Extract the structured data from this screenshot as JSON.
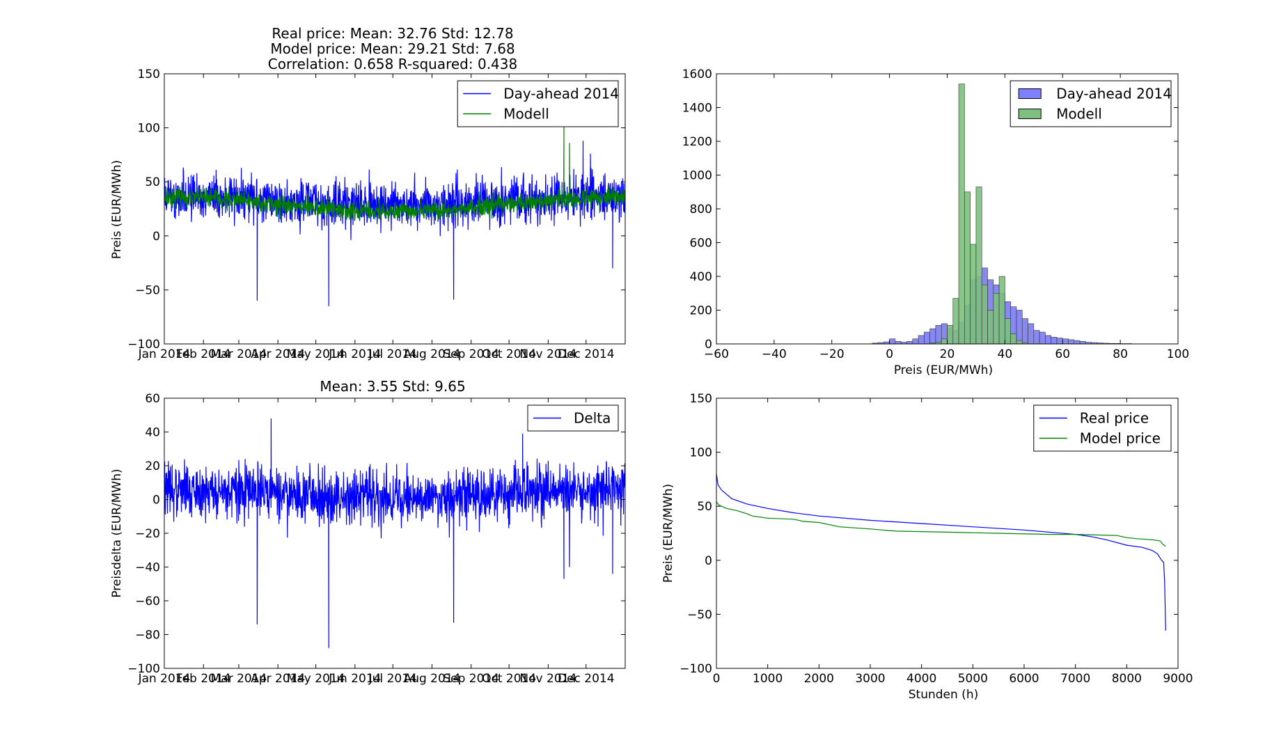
{
  "colors": {
    "blue": "#0000ff",
    "green": "#008000",
    "hist_blue": "#7b7bf0",
    "hist_green": "#7dbf7d"
  },
  "chart_data": [
    {
      "type": "line",
      "title_lines": [
        "Real price: Mean: 32.76 Std: 12.78",
        "Model price: Mean: 29.21 Std: 7.68",
        "Correlation: 0.658 R-squared: 0.438"
      ],
      "xlabel": "",
      "ylabel": "Preis (EUR/MWh)",
      "ylim": [
        -100,
        150
      ],
      "yticks": [
        -100,
        -50,
        0,
        50,
        100,
        150
      ],
      "xlim": [
        0,
        8760
      ],
      "xticks": [
        {
          "x": 0,
          "label": "Jan 2014"
        },
        {
          "x": 744,
          "label": "Feb 2014"
        },
        {
          "x": 1416,
          "label": "Mar 2014"
        },
        {
          "x": 2160,
          "label": "Apr 2014"
        },
        {
          "x": 2880,
          "label": "May 2014"
        },
        {
          "x": 3624,
          "label": "Jun 2014"
        },
        {
          "x": 4344,
          "label": "Jul 2014"
        },
        {
          "x": 5088,
          "label": "Aug 2014"
        },
        {
          "x": 5832,
          "label": "Sep 2014"
        },
        {
          "x": 6552,
          "label": "Oct 2014"
        },
        {
          "x": 7296,
          "label": "Nov 2014"
        },
        {
          "x": 8016,
          "label": "Dec 2014"
        }
      ],
      "legend": [
        "Day-ahead 2014",
        "Modell"
      ],
      "legend_loc": "upper right",
      "series": [
        {
          "name": "Day-ahead 2014",
          "color": "#0000ff",
          "mean": 32.76,
          "std": 12.78,
          "spikes": [
            {
              "x": 1765,
              "y": -60
            },
            {
              "x": 3125,
              "y": -65
            },
            {
              "x": 5500,
              "y": -59
            },
            {
              "x": 8520,
              "y": -30
            },
            {
              "x": 7960,
              "y": 88
            }
          ]
        },
        {
          "name": "Modell",
          "color": "#008000",
          "mean": 29.21,
          "std": 7.68,
          "spikes": [
            {
              "x": 7595,
              "y": 102
            },
            {
              "x": 7700,
              "y": 86
            }
          ]
        }
      ]
    },
    {
      "type": "histogram",
      "xlabel": "Preis (EUR/MWh)",
      "ylabel": "",
      "xlim": [
        -60,
        100
      ],
      "xticks": [
        -60,
        -40,
        -20,
        0,
        20,
        40,
        60,
        80,
        100
      ],
      "ylim": [
        0,
        1600
      ],
      "yticks": [
        0,
        200,
        400,
        600,
        800,
        1000,
        1200,
        1400,
        1600
      ],
      "legend": [
        "Day-ahead 2014",
        "Modell"
      ],
      "legend_loc": "upper right",
      "series": [
        {
          "name": "Day-ahead 2014",
          "bins": [
            [
              -6,
              5
            ],
            [
              -4,
              8
            ],
            [
              -2,
              12
            ],
            [
              0,
              30
            ],
            [
              2,
              15
            ],
            [
              4,
              10
            ],
            [
              6,
              15
            ],
            [
              8,
              30
            ],
            [
              10,
              50
            ],
            [
              12,
              70
            ],
            [
              14,
              90
            ],
            [
              16,
              110
            ],
            [
              18,
              120
            ],
            [
              20,
              95
            ],
            [
              22,
              80
            ],
            [
              24,
              130
            ],
            [
              26,
              230
            ],
            [
              28,
              380
            ],
            [
              30,
              400
            ],
            [
              32,
              450
            ],
            [
              34,
              380
            ],
            [
              36,
              350
            ],
            [
              38,
              300
            ],
            [
              40,
              250
            ],
            [
              42,
              220
            ],
            [
              44,
              200
            ],
            [
              46,
              150
            ],
            [
              48,
              120
            ],
            [
              50,
              80
            ],
            [
              52,
              70
            ],
            [
              54,
              50
            ],
            [
              56,
              40
            ],
            [
              58,
              35
            ],
            [
              60,
              30
            ],
            [
              62,
              25
            ],
            [
              64,
              20
            ],
            [
              66,
              15
            ],
            [
              68,
              10
            ],
            [
              70,
              8
            ],
            [
              72,
              6
            ],
            [
              74,
              4
            ],
            [
              76,
              3
            ],
            [
              78,
              3
            ],
            [
              80,
              2
            ],
            [
              82,
              2
            ]
          ]
        },
        {
          "name": "Modell",
          "bins": [
            [
              14,
              5
            ],
            [
              16,
              10
            ],
            [
              18,
              30
            ],
            [
              20,
              110
            ],
            [
              22,
              270
            ],
            [
              24,
              1540
            ],
            [
              26,
              900
            ],
            [
              28,
              590
            ],
            [
              30,
              930
            ],
            [
              32,
              350
            ],
            [
              34,
              200
            ],
            [
              36,
              300
            ],
            [
              38,
              400
            ],
            [
              40,
              150
            ],
            [
              42,
              60
            ],
            [
              44,
              20
            ],
            [
              46,
              8
            ]
          ]
        }
      ]
    },
    {
      "type": "line",
      "title": "Mean: 3.55 Std: 9.65",
      "xlabel": "",
      "ylabel": "Preisdelta (EUR/MWh)",
      "ylim": [
        -100,
        60
      ],
      "yticks": [
        -100,
        -80,
        -60,
        -40,
        -20,
        0,
        20,
        40,
        60
      ],
      "xlim": [
        0,
        8760
      ],
      "xticks": [
        {
          "x": 0,
          "label": "Jan 2014"
        },
        {
          "x": 744,
          "label": "Feb 2014"
        },
        {
          "x": 1416,
          "label": "Mar 2014"
        },
        {
          "x": 2160,
          "label": "Apr 2014"
        },
        {
          "x": 2880,
          "label": "May 2014"
        },
        {
          "x": 3624,
          "label": "Jun 2014"
        },
        {
          "x": 4344,
          "label": "Jul 2014"
        },
        {
          "x": 5088,
          "label": "Aug 2014"
        },
        {
          "x": 5832,
          "label": "Sep 2014"
        },
        {
          "x": 6552,
          "label": "Oct 2014"
        },
        {
          "x": 7296,
          "label": "Nov 2014"
        },
        {
          "x": 8016,
          "label": "Dec 2014"
        }
      ],
      "legend": [
        "Delta"
      ],
      "legend_loc": "upper right",
      "series": [
        {
          "name": "Delta",
          "color": "#0000ff",
          "mean": 3.55,
          "std": 9.65,
          "spikes": [
            {
              "x": 1765,
              "y": -74
            },
            {
              "x": 3125,
              "y": -88
            },
            {
              "x": 5500,
              "y": -73
            },
            {
              "x": 7595,
              "y": -47
            },
            {
              "x": 7700,
              "y": -40
            },
            {
              "x": 8520,
              "y": -44
            },
            {
              "x": 2030,
              "y": 48
            },
            {
              "x": 6810,
              "y": 39
            }
          ]
        }
      ]
    },
    {
      "type": "line",
      "xlabel": "Stunden (h)",
      "ylabel": "Preis (EUR/MWh)",
      "xlim": [
        0,
        9000
      ],
      "xticks": [
        0,
        1000,
        2000,
        3000,
        4000,
        5000,
        6000,
        7000,
        8000,
        9000
      ],
      "ylim": [
        -100,
        150
      ],
      "yticks": [
        -100,
        -50,
        0,
        50,
        100,
        150
      ],
      "legend": [
        "Real price",
        "Model price"
      ],
      "legend_loc": "upper right",
      "series": [
        {
          "name": "Real price",
          "color": "#0000ff",
          "points": [
            [
              0,
              80
            ],
            [
              30,
              70
            ],
            [
              100,
              65
            ],
            [
              300,
              57
            ],
            [
              600,
              52
            ],
            [
              1000,
              48
            ],
            [
              1500,
              44
            ],
            [
              2000,
              41
            ],
            [
              3000,
              37
            ],
            [
              4000,
              34
            ],
            [
              5000,
              31
            ],
            [
              6000,
              28
            ],
            [
              7000,
              24
            ],
            [
              7300,
              22
            ],
            [
              7600,
              19
            ],
            [
              8000,
              14
            ],
            [
              8300,
              12
            ],
            [
              8500,
              9
            ],
            [
              8600,
              6
            ],
            [
              8680,
              0
            ],
            [
              8720,
              -2
            ],
            [
              8740,
              -20
            ],
            [
              8760,
              -65
            ]
          ]
        },
        {
          "name": "Model price",
          "color": "#008000",
          "points": [
            [
              0,
              54
            ],
            [
              50,
              51
            ],
            [
              200,
              48
            ],
            [
              400,
              46
            ],
            [
              600,
              43
            ],
            [
              700,
              41
            ],
            [
              1000,
              39
            ],
            [
              1500,
              38
            ],
            [
              1700,
              36
            ],
            [
              2000,
              35
            ],
            [
              2400,
              31
            ],
            [
              3000,
              29
            ],
            [
              3500,
              27
            ],
            [
              4500,
              26
            ],
            [
              5500,
              25
            ],
            [
              6500,
              24
            ],
            [
              7000,
              24
            ],
            [
              7800,
              23
            ],
            [
              8000,
              21
            ],
            [
              8200,
              20
            ],
            [
              8500,
              19
            ],
            [
              8650,
              18
            ],
            [
              8700,
              15
            ],
            [
              8760,
              13
            ]
          ]
        }
      ]
    }
  ]
}
